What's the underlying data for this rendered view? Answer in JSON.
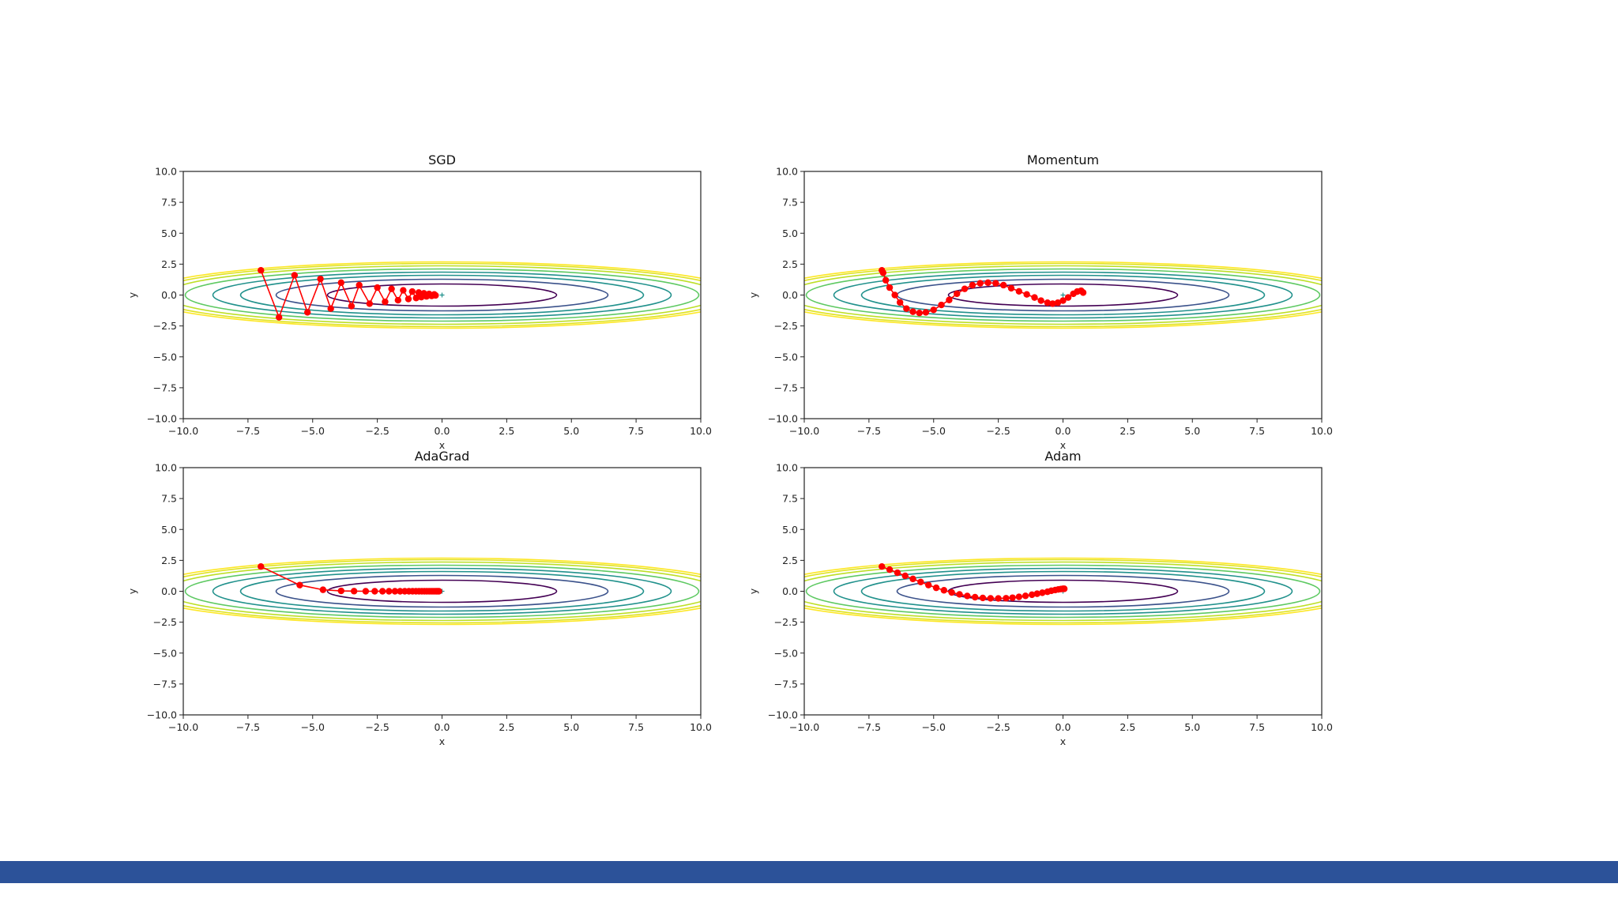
{
  "theme": {
    "footer_color": "#2c5299",
    "path_color": "#ff0000"
  },
  "contour_colors": [
    "#440154",
    "#3b528b",
    "#21918c",
    "#5ec962",
    "#bddf26",
    "#fde725"
  ],
  "chart_data": [
    {
      "type": "line",
      "title": "SGD",
      "xlabel": "x",
      "ylabel": "y",
      "xlim": [
        -10,
        10
      ],
      "ylim": [
        -10,
        10
      ],
      "xticks": [
        "−10.0",
        "−7.5",
        "−5.0",
        "−2.5",
        "0.0",
        "2.5",
        "5.0",
        "7.5",
        "10.0"
      ],
      "yticks": [
        "10.0",
        "7.5",
        "5.0",
        "2.5",
        "0.0",
        "−2.5",
        "−5.0",
        "−7.5",
        "−10.0"
      ],
      "contour_levels": [
        0.0,
        0.1,
        0.0,
        0.1,
        0.0,
        0.1
      ],
      "minimum": [
        0,
        0
      ],
      "series": [
        {
          "name": "SGD path",
          "x": [
            -7.0,
            -6.3,
            -5.7,
            -5.2,
            -4.7,
            -4.3,
            -3.9,
            -3.5,
            -3.2,
            -2.8,
            -2.5,
            -2.2,
            -1.95,
            -1.7,
            -1.5,
            -1.3,
            -1.15,
            -1.0,
            -0.9,
            -0.8,
            -0.7,
            -0.6,
            -0.5,
            -0.4,
            -0.3,
            -0.25
          ],
          "y": [
            2.0,
            -1.8,
            1.6,
            -1.4,
            1.3,
            -1.1,
            1.0,
            -0.9,
            0.8,
            -0.7,
            0.6,
            -0.55,
            0.5,
            -0.42,
            0.38,
            -0.32,
            0.28,
            -0.24,
            0.2,
            -0.17,
            0.14,
            -0.11,
            0.09,
            -0.07,
            0.05,
            -0.03
          ]
        }
      ]
    },
    {
      "type": "line",
      "title": "Momentum",
      "xlabel": "x",
      "ylabel": "y",
      "xlim": [
        -10,
        10
      ],
      "ylim": [
        -10,
        10
      ],
      "xticks": [
        "−10.0",
        "−7.5",
        "−5.0",
        "−2.5",
        "0.0",
        "2.5",
        "5.0",
        "7.5",
        "10.0"
      ],
      "yticks": [
        "10.0",
        "7.5",
        "5.0",
        "2.5",
        "0.0",
        "−2.5",
        "−5.0",
        "−7.5",
        "−10.0"
      ],
      "minimum": [
        0,
        0
      ],
      "series": [
        {
          "name": "Momentum path",
          "x": [
            -7.0,
            -6.95,
            -6.85,
            -6.7,
            -6.5,
            -6.3,
            -6.05,
            -5.8,
            -5.55,
            -5.3,
            -5.0,
            -4.7,
            -4.4,
            -4.1,
            -3.8,
            -3.5,
            -3.2,
            -2.9,
            -2.6,
            -2.3,
            -2.0,
            -1.7,
            -1.4,
            -1.1,
            -0.85,
            -0.6,
            -0.4,
            -0.2,
            0.0,
            0.2,
            0.4,
            0.55,
            0.7,
            0.78
          ],
          "y": [
            2.0,
            1.8,
            1.2,
            0.6,
            0.0,
            -0.6,
            -1.1,
            -1.35,
            -1.45,
            -1.4,
            -1.2,
            -0.8,
            -0.4,
            0.1,
            0.5,
            0.8,
            0.95,
            1.0,
            0.95,
            0.8,
            0.55,
            0.3,
            0.05,
            -0.2,
            -0.45,
            -0.62,
            -0.7,
            -0.62,
            -0.45,
            -0.2,
            0.1,
            0.28,
            0.35,
            0.2
          ]
        }
      ]
    },
    {
      "type": "line",
      "title": "AdaGrad",
      "xlabel": "x",
      "ylabel": "y",
      "xlim": [
        -10,
        10
      ],
      "ylim": [
        -10,
        10
      ],
      "xticks": [
        "−10.0",
        "−7.5",
        "−5.0",
        "−2.5",
        "0.0",
        "2.5",
        "5.0",
        "7.5",
        "10.0"
      ],
      "yticks": [
        "10.0",
        "7.5",
        "5.0",
        "2.5",
        "0.0",
        "−2.5",
        "−5.0",
        "−7.5",
        "−10.0"
      ],
      "minimum": [
        0,
        0
      ],
      "series": [
        {
          "name": "AdaGrad path",
          "x": [
            -7.0,
            -5.5,
            -4.6,
            -3.9,
            -3.4,
            -2.95,
            -2.6,
            -2.3,
            -2.05,
            -1.82,
            -1.62,
            -1.44,
            -1.28,
            -1.14,
            -1.01,
            -0.89,
            -0.78,
            -0.68,
            -0.59,
            -0.5,
            -0.42,
            -0.35,
            -0.28,
            -0.22,
            -0.17,
            -0.12
          ],
          "y": [
            2.0,
            0.5,
            0.12,
            0.03,
            0.01,
            0.0,
            0.0,
            0.0,
            0.0,
            0.0,
            0.0,
            0.0,
            0.0,
            0.0,
            0.0,
            0.0,
            0.0,
            0.0,
            0.0,
            0.0,
            0.0,
            0.0,
            0.0,
            0.0,
            0.0,
            0.0
          ]
        }
      ]
    },
    {
      "type": "line",
      "title": "Adam",
      "xlabel": "x",
      "ylabel": "y",
      "xlim": [
        -10,
        10
      ],
      "ylim": [
        -10,
        10
      ],
      "xticks": [
        "−10.0",
        "−7.5",
        "−5.0",
        "−2.5",
        "0.0",
        "2.5",
        "5.0",
        "7.5",
        "10.0"
      ],
      "yticks": [
        "10.0",
        "7.5",
        "5.0",
        "2.5",
        "0.0",
        "−2.5",
        "−5.0",
        "−7.5",
        "−10.0"
      ],
      "minimum": [
        0,
        0
      ],
      "series": [
        {
          "name": "Adam path",
          "x": [
            -7.0,
            -6.7,
            -6.4,
            -6.1,
            -5.8,
            -5.5,
            -5.2,
            -4.9,
            -4.6,
            -4.3,
            -4.0,
            -3.7,
            -3.4,
            -3.1,
            -2.8,
            -2.5,
            -2.2,
            -1.95,
            -1.7,
            -1.45,
            -1.2,
            -1.0,
            -0.8,
            -0.6,
            -0.45,
            -0.3,
            -0.18,
            -0.08,
            0.0,
            0.05
          ],
          "y": [
            2.0,
            1.75,
            1.5,
            1.25,
            1.0,
            0.75,
            0.5,
            0.28,
            0.08,
            -0.1,
            -0.25,
            -0.38,
            -0.48,
            -0.54,
            -0.57,
            -0.58,
            -0.56,
            -0.52,
            -0.45,
            -0.37,
            -0.28,
            -0.2,
            -0.12,
            -0.04,
            0.04,
            0.1,
            0.15,
            0.18,
            0.2,
            0.2
          ]
        }
      ]
    }
  ]
}
